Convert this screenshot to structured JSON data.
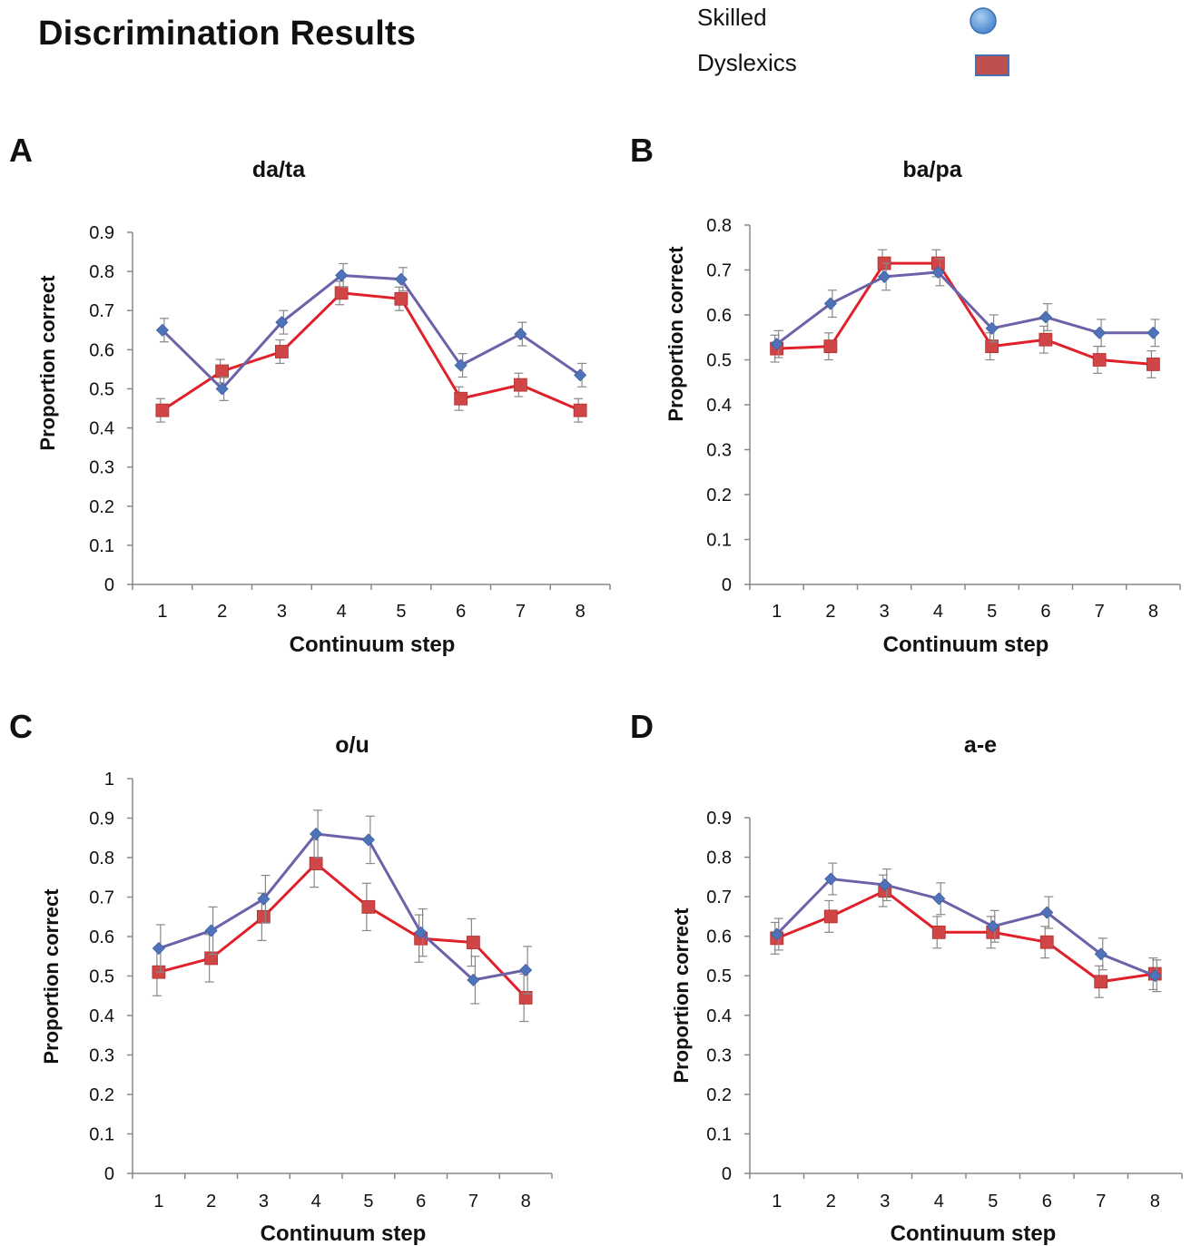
{
  "title": "Discrimination Results",
  "legend": {
    "items": [
      {
        "label": "Skilled",
        "marker": "blue-circle-icon"
      },
      {
        "label": "Dyslexics",
        "marker": "red-rectangle-icon"
      }
    ]
  },
  "colors": {
    "skilled_line": "#6b62a8",
    "skilled_marker": "#4f73b8",
    "dyslexic_line": "#e0202a",
    "dyslexic_marker": "#d04545",
    "legend_circle": "#5b9bd5",
    "legend_rect": "#c0504d",
    "error_bar": "#888888",
    "axis": "#888888"
  },
  "chart_data": [
    {
      "panel": "A",
      "type": "line",
      "title": "da/ta",
      "xlabel": "Continuum step",
      "ylabel": "Proportion correct",
      "categories": [
        "1",
        "2",
        "3",
        "4",
        "5",
        "6",
        "7",
        "8"
      ],
      "ylim": [
        0,
        0.9
      ],
      "yticks": [
        "0",
        "0.1",
        "0.2",
        "0.3",
        "0.4",
        "0.5",
        "0.6",
        "0.7",
        "0.8",
        "0.9"
      ],
      "series": [
        {
          "name": "Skilled",
          "values": [
            0.65,
            0.5,
            0.67,
            0.79,
            0.78,
            0.56,
            0.64,
            0.535
          ],
          "errors": [
            0.03,
            0.03,
            0.03,
            0.03,
            0.03,
            0.03,
            0.03,
            0.03
          ]
        },
        {
          "name": "Dyslexics",
          "values": [
            0.445,
            0.545,
            0.595,
            0.745,
            0.73,
            0.475,
            0.51,
            0.445
          ],
          "errors": [
            0.03,
            0.03,
            0.03,
            0.03,
            0.03,
            0.03,
            0.03,
            0.03
          ]
        }
      ]
    },
    {
      "panel": "B",
      "type": "line",
      "title": "ba/pa",
      "xlabel": "Continuum step",
      "ylabel": "Proportion correct",
      "categories": [
        "1",
        "2",
        "3",
        "4",
        "5",
        "6",
        "7",
        "8"
      ],
      "ylim": [
        0,
        0.8
      ],
      "yticks": [
        "0",
        "0.1",
        "0.2",
        "0.3",
        "0.4",
        "0.5",
        "0.6",
        "0.7",
        "0.8"
      ],
      "series": [
        {
          "name": "Skilled",
          "values": [
            0.535,
            0.625,
            0.685,
            0.695,
            0.57,
            0.595,
            0.56,
            0.56
          ],
          "errors": [
            0.03,
            0.03,
            0.03,
            0.03,
            0.03,
            0.03,
            0.03,
            0.03
          ]
        },
        {
          "name": "Dyslexics",
          "values": [
            0.525,
            0.53,
            0.715,
            0.715,
            0.53,
            0.545,
            0.5,
            0.49
          ],
          "errors": [
            0.03,
            0.03,
            0.03,
            0.03,
            0.03,
            0.03,
            0.03,
            0.03
          ]
        }
      ]
    },
    {
      "panel": "C",
      "type": "line",
      "title": "o/u",
      "xlabel": "Continuum step",
      "ylabel": "Proportion correct",
      "categories": [
        "1",
        "2",
        "3",
        "4",
        "5",
        "6",
        "7",
        "8"
      ],
      "ylim": [
        0,
        1
      ],
      "yticks": [
        "0",
        "0.1",
        "0.2",
        "0.3",
        "0.4",
        "0.5",
        "0.6",
        "0.7",
        "0.8",
        "0.9",
        "1"
      ],
      "series": [
        {
          "name": "Skilled",
          "values": [
            0.57,
            0.615,
            0.695,
            0.86,
            0.845,
            0.61,
            0.49,
            0.515
          ],
          "errors": [
            0.06,
            0.06,
            0.06,
            0.06,
            0.06,
            0.06,
            0.06,
            0.06
          ]
        },
        {
          "name": "Dyslexics",
          "values": [
            0.51,
            0.545,
            0.65,
            0.785,
            0.675,
            0.595,
            0.585,
            0.445
          ],
          "errors": [
            0.06,
            0.06,
            0.06,
            0.06,
            0.06,
            0.06,
            0.06,
            0.06
          ]
        }
      ]
    },
    {
      "panel": "D",
      "type": "line",
      "title": "a-e",
      "xlabel": "Continuum step",
      "ylabel": "Proportion correct",
      "categories": [
        "1",
        "2",
        "3",
        "4",
        "5",
        "6",
        "7",
        "8"
      ],
      "ylim": [
        0,
        0.9
      ],
      "yticks": [
        "0",
        "0.1",
        "0.2",
        "0.3",
        "0.4",
        "0.5",
        "0.6",
        "0.7",
        "0.8",
        "0.9"
      ],
      "series": [
        {
          "name": "Skilled",
          "values": [
            0.605,
            0.745,
            0.73,
            0.695,
            0.625,
            0.66,
            0.555,
            0.5
          ],
          "errors": [
            0.04,
            0.04,
            0.04,
            0.04,
            0.04,
            0.04,
            0.04,
            0.04
          ]
        },
        {
          "name": "Dyslexics",
          "values": [
            0.595,
            0.65,
            0.715,
            0.61,
            0.61,
            0.585,
            0.485,
            0.505
          ],
          "errors": [
            0.04,
            0.04,
            0.04,
            0.04,
            0.04,
            0.04,
            0.04,
            0.04
          ]
        }
      ]
    }
  ]
}
